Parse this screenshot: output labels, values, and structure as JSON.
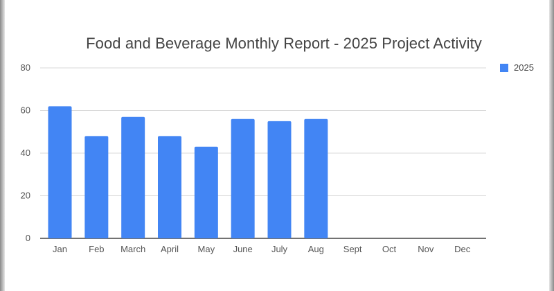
{
  "chart_data": {
    "type": "bar",
    "title": "Food and Beverage Monthly Report - 2025 Project Activity",
    "xlabel": "",
    "ylabel": "",
    "categories": [
      "Jan",
      "Feb",
      "March",
      "April",
      "May",
      "June",
      "July",
      "Aug",
      "Sept",
      "Oct",
      "Nov",
      "Dec"
    ],
    "series": [
      {
        "name": "2025",
        "values": [
          62,
          48,
          57,
          48,
          43,
          56,
          55,
          56,
          null,
          null,
          null,
          null
        ]
      }
    ],
    "ylim": [
      0,
      80
    ],
    "yticks": [
      "0",
      "20",
      "40",
      "60",
      "80"
    ],
    "grid": true,
    "legend_position": "right",
    "colors": {
      "bar": "#4285f4",
      "grid": "#d9d9d9",
      "axis": "#444444",
      "tick_text": "#555555"
    }
  }
}
